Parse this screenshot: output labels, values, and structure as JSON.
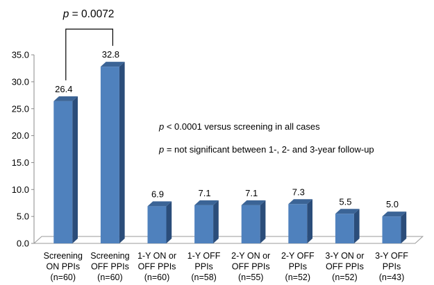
{
  "chart_data": {
    "type": "bar",
    "title": "",
    "xlabel": "",
    "ylabel": "",
    "ylim": [
      0,
      35
    ],
    "yticks": [
      "0.0",
      "5.0",
      "10.0",
      "15.0",
      "20.0",
      "25.0",
      "30.0",
      "35.0"
    ],
    "grid": false,
    "categories": [
      [
        "Screening",
        "ON PPIs",
        "(n=60)"
      ],
      [
        "Screening",
        "OFF PPIs",
        "(n=60)"
      ],
      [
        "1-Y ON or",
        "OFF PPIs",
        "(n=60)"
      ],
      [
        "1-Y OFF",
        "PPIs",
        "(n=58)"
      ],
      [
        "2-Y ON or",
        "OFF PPIs",
        "(n=55)"
      ],
      [
        "2-Y OFF",
        "PPIs",
        "(n=52)"
      ],
      [
        "3-Y ON or",
        "OFF PPIs",
        "(n=52)"
      ],
      [
        "3-Y OFF",
        "PPIs",
        "(n=43)"
      ]
    ],
    "values": [
      26.4,
      32.8,
      6.9,
      7.1,
      7.1,
      7.3,
      5.5,
      5.0
    ],
    "value_labels": [
      "26.4",
      "32.8",
      "6.9",
      "7.1",
      "7.1",
      "7.3",
      "5.5",
      "5.0"
    ],
    "bar_color": "#4F81BD",
    "bar_side_color": "#2B4D7A",
    "bar_top_color": "#3B6496",
    "floor_color": "#ffffff",
    "bracket": {
      "p_symbol": "p",
      "p_rest": " = 0.0072",
      "from_index": 0,
      "to_index": 1
    },
    "annotations": [
      {
        "p_symbol": "p",
        "text": " <  0.0001 versus screening in all cases"
      },
      {
        "p_symbol": "p",
        "text": " = not significant between 1-, 2- and 3-year follow-up"
      }
    ]
  }
}
